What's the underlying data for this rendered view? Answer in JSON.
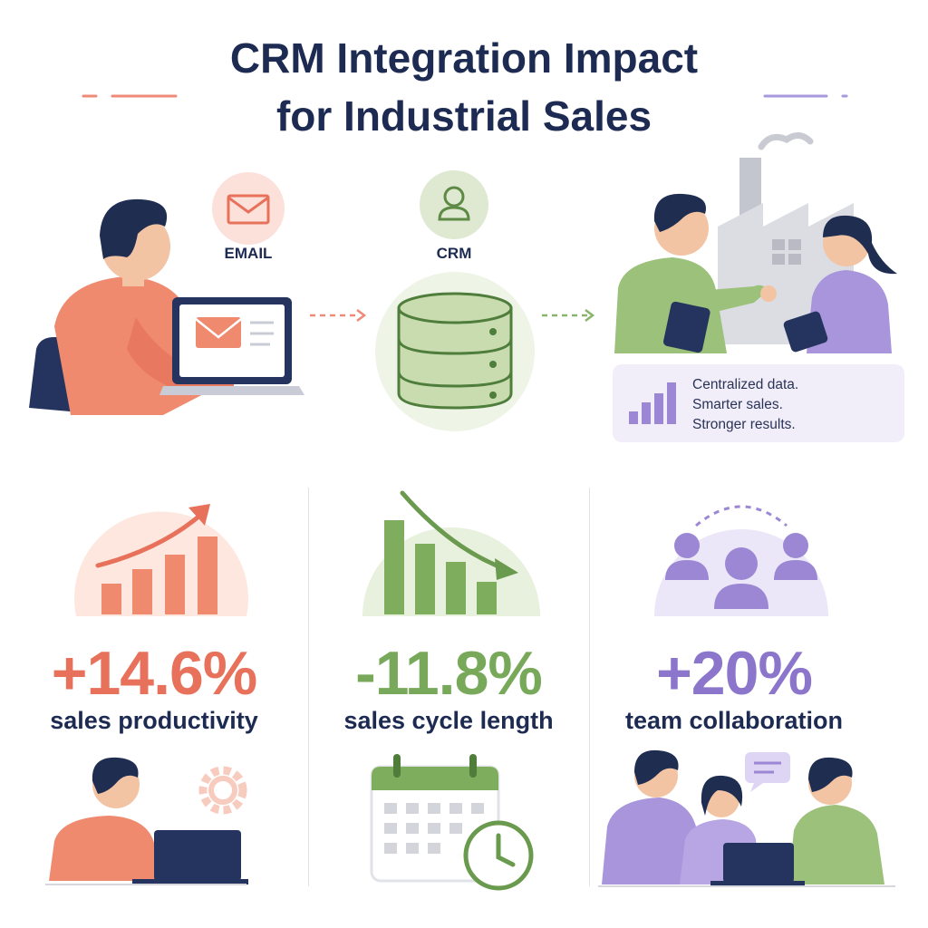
{
  "header": {
    "title_line1": "CRM Integration Impact",
    "title_line2": "for Industrial Sales"
  },
  "flow": {
    "email_label": "EMAIL",
    "crm_label": "CRM",
    "note_lines": [
      "Centralized data.",
      "Smarter sales.",
      "Stronger results."
    ]
  },
  "stats": [
    {
      "value": "+14.6%",
      "caption": "sales productivity",
      "color": "#e8715b"
    },
    {
      "value": "-11.8%",
      "caption": "sales cycle length",
      "color": "#78a95a"
    },
    {
      "value": "+20%",
      "caption": "team collaboration",
      "color": "#8b76cc"
    }
  ],
  "colors": {
    "navy": "#1d2b53",
    "coral": "#e8715b",
    "green": "#78a95a",
    "purple": "#8b76cc"
  },
  "icons": [
    "envelope-icon",
    "user-icon",
    "database-icon",
    "growth-chart-icon",
    "decline-chart-icon",
    "team-icon",
    "gear-icon",
    "calendar-icon",
    "clock-icon",
    "chat-bubble-icon",
    "factory-icon"
  ]
}
